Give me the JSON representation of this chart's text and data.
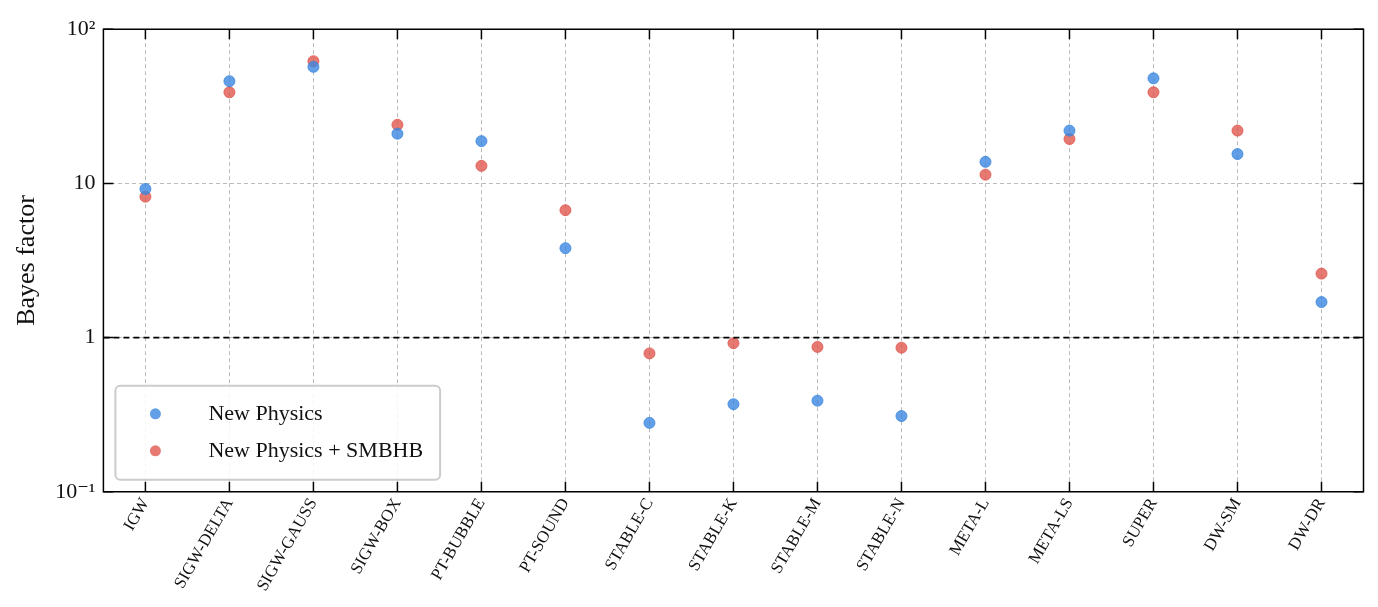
{
  "chart_data": {
    "type": "scatter",
    "ylabel": "Bayes factor",
    "categories": [
      "IGW",
      "SIGW-DELTA",
      "SIGW-GAUSS",
      "SIGW-BOX",
      "PT-BUBBLE",
      "PT-SOUND",
      "STABLE-C",
      "STABLE-K",
      "STABLE-M",
      "STABLE-N",
      "META-L",
      "META-LS",
      "SUPER",
      "DW-SM",
      "DW-DR"
    ],
    "series": [
      {
        "name": "New Physics",
        "color": "#3b87e0",
        "values": [
          9.2,
          46,
          57,
          21,
          18.8,
          3.8,
          0.28,
          0.37,
          0.39,
          0.31,
          13.8,
          22,
          48,
          15.5,
          1.7
        ]
      },
      {
        "name": "New Physics + SMBHB",
        "color": "#e0574f",
        "values": [
          8.2,
          39,
          62,
          24,
          13,
          6.7,
          0.79,
          0.92,
          0.87,
          0.86,
          11.4,
          19.4,
          39,
          22,
          2.6
        ]
      }
    ],
    "log": "y",
    "ylim": [
      0.1,
      100
    ],
    "yticks": [
      {
        "value": 0.1,
        "label": "10⁻¹"
      },
      1,
      10,
      {
        "value": 100,
        "label": "10²"
      }
    ],
    "ref_lines": [
      {
        "axis": "y",
        "value": 1,
        "color": "#000000",
        "line_style": "dashed"
      }
    ],
    "grid": true,
    "legend": "bottom left",
    "marker": "circle"
  }
}
